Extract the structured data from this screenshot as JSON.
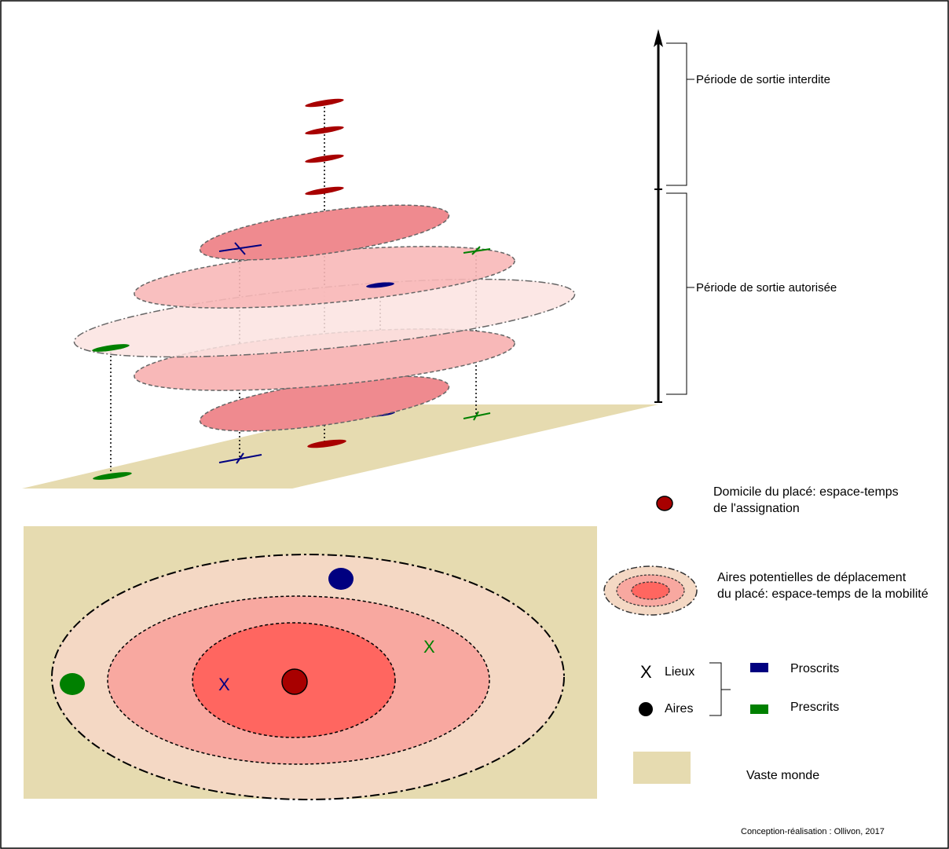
{
  "time_axis": {
    "forbidden_label": "Période de sortie interdite",
    "allowed_label": "Période de sortie autorisée"
  },
  "legend": {
    "domicile": {
      "line1": "Domicile du placé: espace-temps",
      "line2": "de l'assignation"
    },
    "aires_potentielles": {
      "line1": "Aires potentielles de déplacement",
      "line2": "du placé: espace-temps de la mobilité"
    },
    "lieux": {
      "symbol": "X",
      "label": "Lieux"
    },
    "aires": {
      "label": "Aires"
    },
    "proscrits": "Proscrits",
    "prescrits": "Prescrits",
    "vaste_monde": "Vaste monde"
  },
  "map": {
    "x_mark": "X"
  },
  "credit": "Conception-réalisation : Ollivon, 2017",
  "colors": {
    "domicile_red": "#a80000",
    "proscrit_blue": "#000080",
    "prescrit_green": "#008000",
    "ground": "#e6dbb0",
    "inner_area": "#ff6660",
    "middle_area": "#f8a8a0",
    "outer_area": "#f4d8c4"
  }
}
